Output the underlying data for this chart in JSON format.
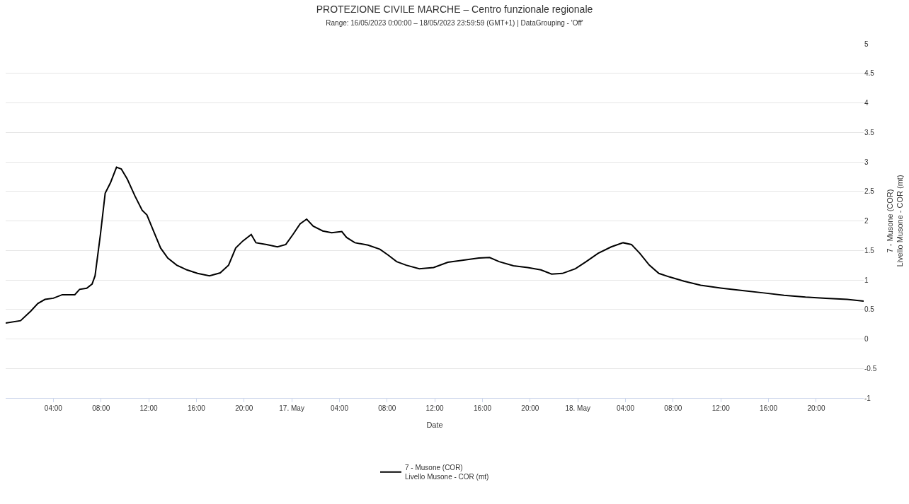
{
  "chart_data": {
    "type": "line",
    "title": "PROTEZIONE CIVILE MARCHE – Centro funzionale regionale",
    "subtitle": "Range: 16/05/2023 0:00:00 – 18/05/2023 23:59:59 (GMT+1) | DataGrouping - 'Off'",
    "xlabel": "Date",
    "ylabel": "7 - Musone (COR)\nLivello Musone - COR (mt)",
    "x": [
      "2023-05-16T00:00",
      "2023-05-16T01:15",
      "2023-05-16T02:06",
      "2023-05-16T02:42",
      "2023-05-16T03:18",
      "2023-05-16T04:00",
      "2023-05-16T04:45",
      "2023-05-16T05:48",
      "2023-05-16T06:12",
      "2023-05-16T06:48",
      "2023-05-16T07:15",
      "2023-05-16T07:30",
      "2023-05-16T07:57",
      "2023-05-16T08:21",
      "2023-05-16T08:48",
      "2023-05-16T09:18",
      "2023-05-16T09:42",
      "2023-05-16T10:12",
      "2023-05-16T10:51",
      "2023-05-16T11:27",
      "2023-05-16T11:51",
      "2023-05-16T12:24",
      "2023-05-16T13:00",
      "2023-05-16T13:36",
      "2023-05-16T14:21",
      "2023-05-16T15:12",
      "2023-05-16T16:06",
      "2023-05-16T17:06",
      "2023-05-16T18:00",
      "2023-05-16T18:42",
      "2023-05-16T19:18",
      "2023-05-16T19:54",
      "2023-05-16T20:36",
      "2023-05-16T21:00",
      "2023-05-16T21:54",
      "2023-05-16T22:48",
      "2023-05-16T23:30",
      "2023-05-17T00:06",
      "2023-05-17T00:42",
      "2023-05-17T01:15",
      "2023-05-17T01:48",
      "2023-05-17T02:36",
      "2023-05-17T03:21",
      "2023-05-17T04:12",
      "2023-05-17T04:36",
      "2023-05-17T05:18",
      "2023-05-17T06:24",
      "2023-05-17T07:24",
      "2023-05-17T08:06",
      "2023-05-17T08:48",
      "2023-05-17T09:36",
      "2023-05-17T10:42",
      "2023-05-17T11:54",
      "2023-05-17T13:06",
      "2023-05-17T14:12",
      "2023-05-17T15:42",
      "2023-05-17T16:36",
      "2023-05-17T17:24",
      "2023-05-17T18:36",
      "2023-05-17T19:48",
      "2023-05-17T20:54",
      "2023-05-17T21:48",
      "2023-05-17T22:42",
      "2023-05-17T23:48",
      "2023-05-18T00:42",
      "2023-05-18T01:42",
      "2023-05-18T02:48",
      "2023-05-18T03:48",
      "2023-05-18T04:30",
      "2023-05-18T05:12",
      "2023-05-18T06:00",
      "2023-05-18T06:48",
      "2023-05-18T07:42",
      "2023-05-18T08:54",
      "2023-05-18T10:18",
      "2023-05-18T12:06",
      "2023-05-18T13:48",
      "2023-05-18T15:36",
      "2023-05-18T17:18",
      "2023-05-18T19:06",
      "2023-05-18T20:48",
      "2023-05-18T22:36",
      "2023-05-18T23:59"
    ],
    "series": [
      {
        "name": "7 - Musone (COR)\nLivello Musone - COR (mt)",
        "color": "#000000",
        "values": [
          0.27,
          0.31,
          0.47,
          0.6,
          0.67,
          0.69,
          0.75,
          0.75,
          0.84,
          0.86,
          0.93,
          1.07,
          1.77,
          2.47,
          2.65,
          2.91,
          2.88,
          2.71,
          2.42,
          2.18,
          2.1,
          1.83,
          1.54,
          1.37,
          1.25,
          1.17,
          1.11,
          1.07,
          1.12,
          1.25,
          1.54,
          1.66,
          1.77,
          1.63,
          1.6,
          1.56,
          1.6,
          1.77,
          1.95,
          2.03,
          1.91,
          1.83,
          1.8,
          1.82,
          1.72,
          1.63,
          1.59,
          1.52,
          1.42,
          1.31,
          1.25,
          1.19,
          1.21,
          1.3,
          1.33,
          1.37,
          1.38,
          1.31,
          1.24,
          1.21,
          1.17,
          1.1,
          1.11,
          1.19,
          1.31,
          1.45,
          1.56,
          1.63,
          1.6,
          1.45,
          1.25,
          1.11,
          1.05,
          0.98,
          0.91,
          0.86,
          0.82,
          0.78,
          0.74,
          0.71,
          0.69,
          0.67,
          0.64
        ]
      }
    ],
    "xlim": [
      "2023-05-16T00:00",
      "2023-05-18T23:59"
    ],
    "xticks": [
      {
        "value": "2023-05-16T04:00",
        "label": "04:00"
      },
      {
        "value": "2023-05-16T08:00",
        "label": "08:00"
      },
      {
        "value": "2023-05-16T12:00",
        "label": "12:00"
      },
      {
        "value": "2023-05-16T16:00",
        "label": "16:00"
      },
      {
        "value": "2023-05-16T20:00",
        "label": "20:00"
      },
      {
        "value": "2023-05-17T00:00",
        "label": "17. May"
      },
      {
        "value": "2023-05-17T04:00",
        "label": "04:00"
      },
      {
        "value": "2023-05-17T08:00",
        "label": "08:00"
      },
      {
        "value": "2023-05-17T12:00",
        "label": "12:00"
      },
      {
        "value": "2023-05-17T16:00",
        "label": "16:00"
      },
      {
        "value": "2023-05-17T20:00",
        "label": "20:00"
      },
      {
        "value": "2023-05-18T00:00",
        "label": "18. May"
      },
      {
        "value": "2023-05-18T04:00",
        "label": "04:00"
      },
      {
        "value": "2023-05-18T08:00",
        "label": "08:00"
      },
      {
        "value": "2023-05-18T12:00",
        "label": "12:00"
      },
      {
        "value": "2023-05-18T16:00",
        "label": "16:00"
      },
      {
        "value": "2023-05-18T20:00",
        "label": "20:00"
      }
    ],
    "ylim": [
      -1,
      5
    ],
    "yticks": [
      -1,
      -0.5,
      0,
      0.5,
      1,
      1.5,
      2,
      2.5,
      3,
      3.5,
      4,
      4.5,
      5
    ],
    "grid": "y",
    "legend": "bottom",
    "marker": "none",
    "line_style": "solid"
  }
}
